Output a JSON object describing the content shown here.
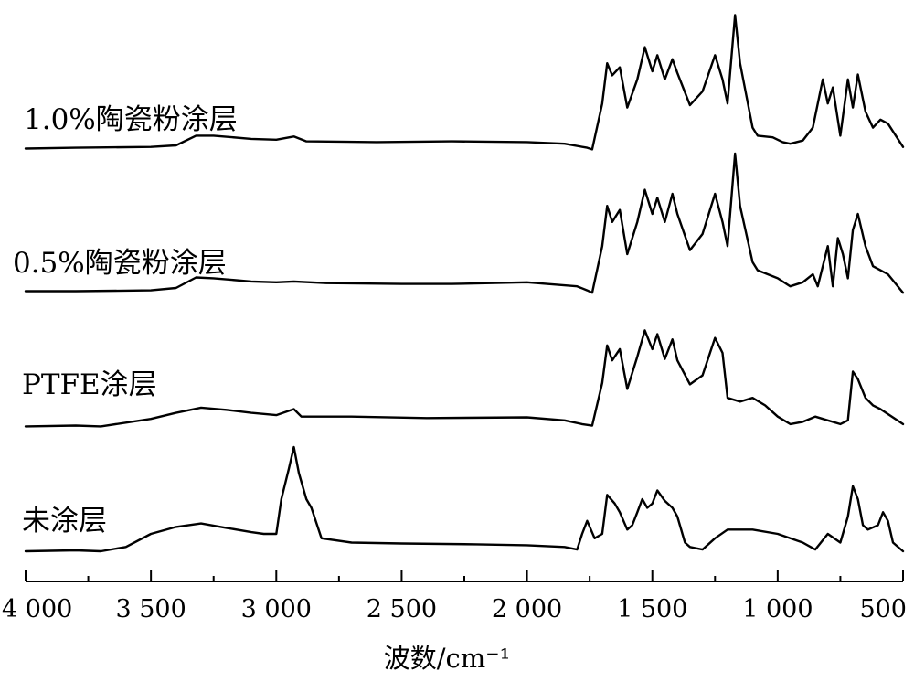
{
  "chart_data": {
    "type": "line",
    "xlabel": "波数/cm⁻¹",
    "ylabel": "",
    "xlim": [
      4000,
      500
    ],
    "x_reversed": true,
    "x_ticks": [
      4000,
      3500,
      3000,
      2500,
      2000,
      1500,
      1000,
      500
    ],
    "x_tick_labels": [
      "4 000",
      "3 500",
      "3 000",
      "2 500",
      "2 000",
      "1 500",
      "1 000",
      "500"
    ],
    "series": [
      {
        "name": "1.0%陶瓷粉涂层",
        "points": [
          [
            4000,
            0.04
          ],
          [
            3800,
            0.05
          ],
          [
            3500,
            0.06
          ],
          [
            3400,
            0.08
          ],
          [
            3320,
            0.2
          ],
          [
            3250,
            0.2
          ],
          [
            3100,
            0.16
          ],
          [
            3000,
            0.15
          ],
          [
            2930,
            0.19
          ],
          [
            2880,
            0.13
          ],
          [
            2600,
            0.12
          ],
          [
            2300,
            0.13
          ],
          [
            2000,
            0.12
          ],
          [
            1850,
            0.1
          ],
          [
            1760,
            0.05
          ],
          [
            1740,
            0.03
          ],
          [
            1700,
            0.6
          ],
          [
            1680,
            1.1
          ],
          [
            1660,
            0.95
          ],
          [
            1630,
            1.05
          ],
          [
            1600,
            0.55
          ],
          [
            1560,
            0.9
          ],
          [
            1530,
            1.3
          ],
          [
            1500,
            1.0
          ],
          [
            1480,
            1.2
          ],
          [
            1450,
            0.9
          ],
          [
            1420,
            1.15
          ],
          [
            1400,
            0.98
          ],
          [
            1350,
            0.58
          ],
          [
            1300,
            0.75
          ],
          [
            1250,
            1.2
          ],
          [
            1220,
            0.9
          ],
          [
            1200,
            0.6
          ],
          [
            1170,
            1.7
          ],
          [
            1150,
            1.1
          ],
          [
            1100,
            0.3
          ],
          [
            1080,
            0.2
          ],
          [
            1020,
            0.18
          ],
          [
            980,
            0.12
          ],
          [
            950,
            0.1
          ],
          [
            900,
            0.14
          ],
          [
            860,
            0.3
          ],
          [
            820,
            0.9
          ],
          [
            800,
            0.6
          ],
          [
            780,
            0.8
          ],
          [
            750,
            0.2
          ],
          [
            720,
            0.9
          ],
          [
            700,
            0.55
          ],
          [
            680,
            0.96
          ],
          [
            650,
            0.5
          ],
          [
            620,
            0.3
          ],
          [
            590,
            0.4
          ],
          [
            560,
            0.35
          ],
          [
            500,
            0.06
          ]
        ]
      },
      {
        "name": "0.5%陶瓷粉涂层",
        "points": [
          [
            4000,
            0.04
          ],
          [
            3800,
            0.04
          ],
          [
            3500,
            0.05
          ],
          [
            3400,
            0.08
          ],
          [
            3320,
            0.21
          ],
          [
            3250,
            0.2
          ],
          [
            3100,
            0.16
          ],
          [
            3000,
            0.15
          ],
          [
            2930,
            0.16
          ],
          [
            2800,
            0.14
          ],
          [
            2500,
            0.13
          ],
          [
            2300,
            0.13
          ],
          [
            2000,
            0.15
          ],
          [
            1800,
            0.1
          ],
          [
            1760,
            0.05
          ],
          [
            1740,
            0.02
          ],
          [
            1700,
            0.6
          ],
          [
            1680,
            1.1
          ],
          [
            1660,
            0.9
          ],
          [
            1630,
            1.05
          ],
          [
            1600,
            0.5
          ],
          [
            1560,
            0.9
          ],
          [
            1530,
            1.3
          ],
          [
            1500,
            1.0
          ],
          [
            1480,
            1.2
          ],
          [
            1450,
            0.9
          ],
          [
            1420,
            1.25
          ],
          [
            1400,
            1.0
          ],
          [
            1350,
            0.55
          ],
          [
            1300,
            0.75
          ],
          [
            1250,
            1.25
          ],
          [
            1220,
            0.9
          ],
          [
            1200,
            0.6
          ],
          [
            1170,
            1.75
          ],
          [
            1150,
            1.1
          ],
          [
            1100,
            0.4
          ],
          [
            1080,
            0.3
          ],
          [
            1000,
            0.2
          ],
          [
            950,
            0.1
          ],
          [
            900,
            0.15
          ],
          [
            860,
            0.25
          ],
          [
            840,
            0.1
          ],
          [
            820,
            0.35
          ],
          [
            800,
            0.6
          ],
          [
            780,
            0.1
          ],
          [
            760,
            0.7
          ],
          [
            740,
            0.5
          ],
          [
            720,
            0.2
          ],
          [
            700,
            0.8
          ],
          [
            680,
            1.0
          ],
          [
            650,
            0.6
          ],
          [
            620,
            0.35
          ],
          [
            590,
            0.3
          ],
          [
            560,
            0.25
          ],
          [
            500,
            0.02
          ]
        ]
      },
      {
        "name": "PTFE涂层",
        "points": [
          [
            4000,
            0.02
          ],
          [
            3800,
            0.03
          ],
          [
            3700,
            0.02
          ],
          [
            3500,
            0.12
          ],
          [
            3400,
            0.2
          ],
          [
            3300,
            0.27
          ],
          [
            3200,
            0.24
          ],
          [
            3100,
            0.2
          ],
          [
            3000,
            0.17
          ],
          [
            2930,
            0.25
          ],
          [
            2900,
            0.15
          ],
          [
            2700,
            0.15
          ],
          [
            2400,
            0.13
          ],
          [
            2000,
            0.14
          ],
          [
            1850,
            0.1
          ],
          [
            1780,
            0.05
          ],
          [
            1740,
            0.03
          ],
          [
            1700,
            0.6
          ],
          [
            1680,
            1.1
          ],
          [
            1660,
            0.9
          ],
          [
            1630,
            1.05
          ],
          [
            1600,
            0.52
          ],
          [
            1560,
            0.95
          ],
          [
            1530,
            1.3
          ],
          [
            1500,
            1.05
          ],
          [
            1480,
            1.25
          ],
          [
            1450,
            0.92
          ],
          [
            1420,
            1.18
          ],
          [
            1400,
            0.9
          ],
          [
            1350,
            0.58
          ],
          [
            1300,
            0.7
          ],
          [
            1250,
            1.2
          ],
          [
            1220,
            1.0
          ],
          [
            1200,
            0.4
          ],
          [
            1150,
            0.35
          ],
          [
            1100,
            0.4
          ],
          [
            1050,
            0.3
          ],
          [
            1000,
            0.15
          ],
          [
            950,
            0.05
          ],
          [
            900,
            0.08
          ],
          [
            850,
            0.15
          ],
          [
            800,
            0.1
          ],
          [
            750,
            0.05
          ],
          [
            720,
            0.1
          ],
          [
            700,
            0.75
          ],
          [
            680,
            0.65
          ],
          [
            650,
            0.4
          ],
          [
            620,
            0.3
          ],
          [
            590,
            0.25
          ],
          [
            500,
            0.05
          ]
        ]
      },
      {
        "name": "未涂层",
        "points": [
          [
            4000,
            0.0
          ],
          [
            3800,
            0.01
          ],
          [
            3700,
            0.0
          ],
          [
            3600,
            0.05
          ],
          [
            3500,
            0.2
          ],
          [
            3400,
            0.28
          ],
          [
            3300,
            0.32
          ],
          [
            3200,
            0.27
          ],
          [
            3100,
            0.22
          ],
          [
            3050,
            0.2
          ],
          [
            3000,
            0.2
          ],
          [
            2980,
            0.6
          ],
          [
            2950,
            0.95
          ],
          [
            2930,
            1.2
          ],
          [
            2910,
            0.9
          ],
          [
            2880,
            0.6
          ],
          [
            2860,
            0.5
          ],
          [
            2820,
            0.15
          ],
          [
            2700,
            0.1
          ],
          [
            2500,
            0.09
          ],
          [
            2200,
            0.08
          ],
          [
            2000,
            0.07
          ],
          [
            1850,
            0.05
          ],
          [
            1800,
            0.02
          ],
          [
            1780,
            0.2
          ],
          [
            1760,
            0.35
          ],
          [
            1730,
            0.15
          ],
          [
            1700,
            0.2
          ],
          [
            1680,
            0.65
          ],
          [
            1650,
            0.55
          ],
          [
            1630,
            0.45
          ],
          [
            1600,
            0.25
          ],
          [
            1580,
            0.3
          ],
          [
            1560,
            0.45
          ],
          [
            1540,
            0.6
          ],
          [
            1520,
            0.5
          ],
          [
            1500,
            0.55
          ],
          [
            1480,
            0.7
          ],
          [
            1450,
            0.58
          ],
          [
            1420,
            0.5
          ],
          [
            1400,
            0.4
          ],
          [
            1370,
            0.1
          ],
          [
            1350,
            0.05
          ],
          [
            1300,
            0.02
          ],
          [
            1250,
            0.15
          ],
          [
            1200,
            0.25
          ],
          [
            1100,
            0.25
          ],
          [
            1000,
            0.2
          ],
          [
            950,
            0.15
          ],
          [
            900,
            0.1
          ],
          [
            850,
            0.02
          ],
          [
            800,
            0.2
          ],
          [
            750,
            0.1
          ],
          [
            720,
            0.4
          ],
          [
            700,
            0.75
          ],
          [
            680,
            0.6
          ],
          [
            660,
            0.3
          ],
          [
            640,
            0.25
          ],
          [
            600,
            0.3
          ],
          [
            580,
            0.45
          ],
          [
            560,
            0.35
          ],
          [
            540,
            0.1
          ],
          [
            500,
            0.0
          ]
        ]
      }
    ]
  }
}
